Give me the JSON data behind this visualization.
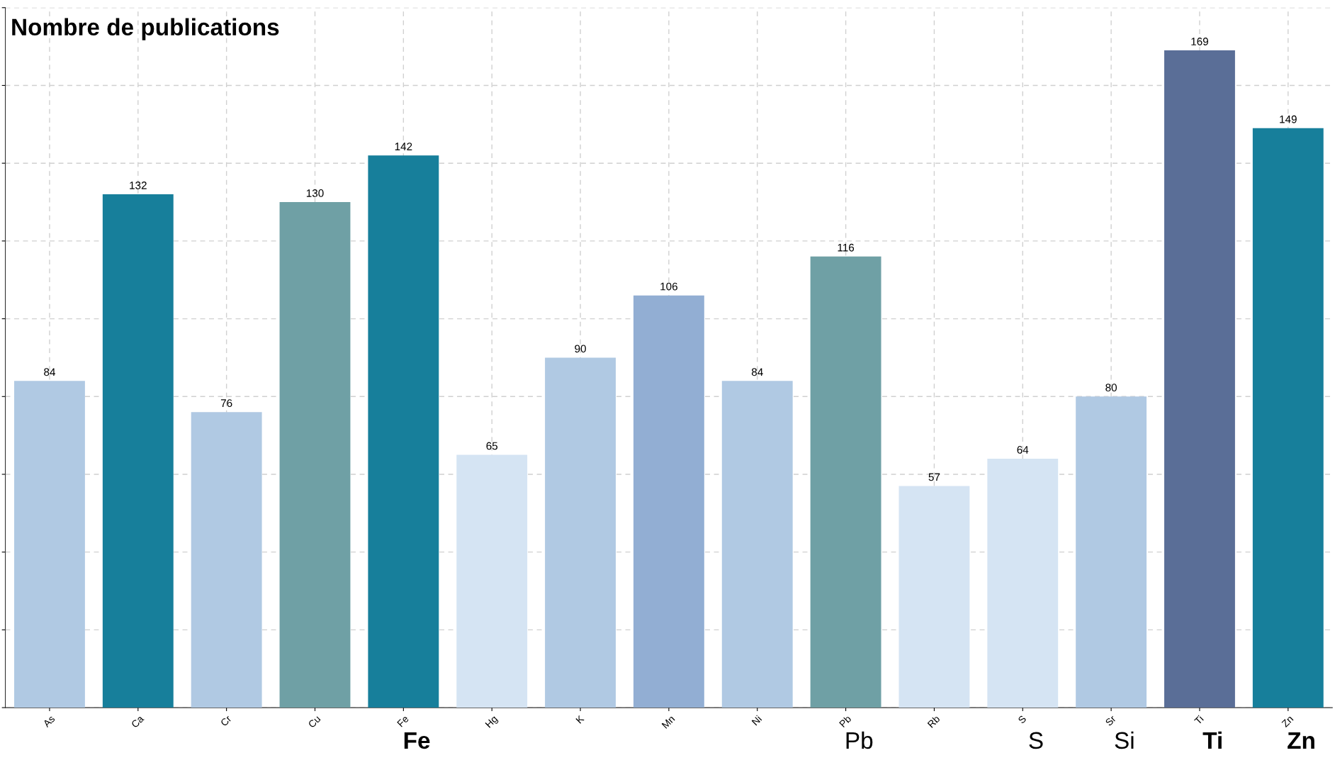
{
  "chart_data": {
    "type": "bar",
    "title": "Nombre de publications",
    "categories": [
      "As",
      "Ca",
      "Cr",
      "Cu",
      "Fe",
      "Hg",
      "K",
      "Mn",
      "Ni",
      "Pb",
      "Rb",
      "S",
      "Sr",
      "Ti",
      "Zn"
    ],
    "values": [
      84,
      132,
      76,
      130,
      142,
      65,
      90,
      106,
      84,
      116,
      57,
      64,
      80,
      169,
      149
    ],
    "colors": [
      "#b0c9e3",
      "#177f9b",
      "#b0c9e3",
      "#6fa0a5",
      "#177f9b",
      "#d5e4f3",
      "#b0c9e3",
      "#92aed3",
      "#b0c9e3",
      "#6fa0a5",
      "#d5e4f3",
      "#d5e4f3",
      "#b0c9e3",
      "#5a6e97",
      "#177f9b"
    ],
    "ylim": [
      0,
      180
    ],
    "yticks": [
      {
        "value": 0,
        "label": null
      },
      {
        "value": 20,
        "label": null
      },
      {
        "value": 40,
        "label": null
      },
      {
        "value": 60,
        "label": null
      },
      {
        "value": 80,
        "label": null
      },
      {
        "value": 100,
        "label": null
      },
      {
        "value": 120,
        "label": null
      },
      {
        "value": 140,
        "label": null
      },
      {
        "value": 160,
        "label": null
      },
      {
        "value": 180,
        "label": null
      }
    ],
    "data_labels": true,
    "grid": true,
    "tick_labels": "x",
    "annotations": [
      "Fe",
      "Pb",
      "S",
      "Si",
      "Ti",
      "Zn"
    ]
  }
}
